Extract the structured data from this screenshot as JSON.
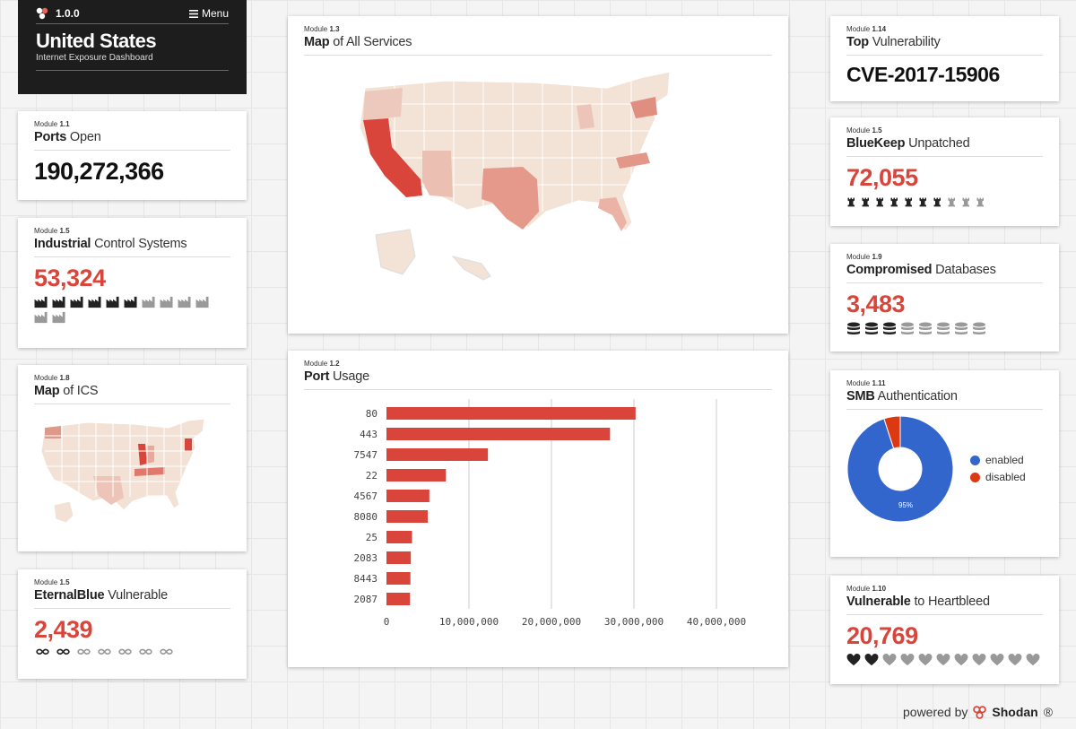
{
  "header": {
    "version": "1.0.0",
    "menu_label": "Menu",
    "country": "United States",
    "subtitle": "Internet Exposure Dashboard"
  },
  "ports_open": {
    "module_prefix": "Module",
    "module_num": "1.1",
    "title_bold": "Ports",
    "title_rest": " Open",
    "value": "190,272,366"
  },
  "ics": {
    "module_prefix": "Module",
    "module_num": "1.5",
    "title_bold": "Industrial",
    "title_rest": " Control Systems",
    "value": "53,324",
    "icons_filled": 6,
    "icons_total": 12
  },
  "map_ics": {
    "module_prefix": "Module",
    "module_num": "1.8",
    "title_bold": "Map",
    "title_rest": " of ICS"
  },
  "eternalblue": {
    "module_prefix": "Module",
    "module_num": "1.5",
    "title_bold": "EternalBlue",
    "title_rest": " Vulnerable",
    "value": "2,439",
    "icons_filled": 2,
    "icons_total": 7
  },
  "map_services": {
    "module_prefix": "Module",
    "module_num": "1.3",
    "title_bold": "Map",
    "title_rest": " of All Services"
  },
  "port_usage": {
    "module_prefix": "Module",
    "module_num": "1.2",
    "title_bold": "Port",
    "title_rest": " Usage"
  },
  "chart_data": {
    "type": "bar",
    "orientation": "horizontal",
    "categories": [
      "80",
      "443",
      "7547",
      "22",
      "4567",
      "8080",
      "25",
      "2083",
      "8443",
      "2087"
    ],
    "values": [
      30200000,
      27100000,
      12300000,
      7200000,
      5200000,
      5000000,
      3100000,
      2950000,
      2900000,
      2850000
    ],
    "xlim": [
      0,
      40000000
    ],
    "xticks": [
      0,
      10000000,
      20000000,
      30000000,
      40000000
    ],
    "xtick_labels": [
      "0",
      "10,000,000",
      "20,000,000",
      "30,000,000",
      "40,000,000"
    ],
    "bar_color": "#d9453a",
    "grid": true
  },
  "top_vuln": {
    "module_prefix": "Module",
    "module_num": "1.14",
    "title_bold": "Top",
    "title_rest": " Vulnerability",
    "value": "CVE-2017-15906"
  },
  "bluekeep": {
    "module_prefix": "Module",
    "module_num": "1.5",
    "title_bold": "BlueKeep",
    "title_rest": " Unpatched",
    "value": "72,055",
    "icons_filled": 7,
    "icons_total": 10
  },
  "compromised": {
    "module_prefix": "Module",
    "module_num": "1.9",
    "title_bold": "Compromised",
    "title_rest": " Databases",
    "value": "3,483",
    "icons_filled": 3,
    "icons_total": 8
  },
  "smb": {
    "module_prefix": "Module",
    "module_num": "1.11",
    "title_bold": "SMB",
    "title_rest": " Authentication",
    "legend": [
      {
        "label": "enabled",
        "color": "#3366cc"
      },
      {
        "label": "disabled",
        "color": "#dc3912"
      }
    ],
    "enabled_pct": 95,
    "disabled_pct": 5,
    "pct_label": "95%"
  },
  "heartbleed": {
    "module_prefix": "Module",
    "module_num": "1.10",
    "title_bold": "Vulnerable",
    "title_rest": " to Heartbleed",
    "value": "20,769",
    "icons_filled": 2,
    "icons_total": 11
  },
  "footer": {
    "powered_by": "powered by",
    "brand": "Shodan",
    "reg": "®"
  },
  "colors": {
    "accent_red": "#d9453a",
    "map_base": "#f3e2d6",
    "map_high": "#dd4433",
    "icon_filled": "#222222",
    "icon_empty": "#999999"
  },
  "icons": {
    "menu": "hamburger-icon",
    "logo": "shodan-logo-icon",
    "ics": "factory-icon",
    "eternalblue": "infinity-icon",
    "bluekeep": "chess-rook-icon",
    "compromised": "database-icon",
    "heartbleed": "heart-icon"
  }
}
